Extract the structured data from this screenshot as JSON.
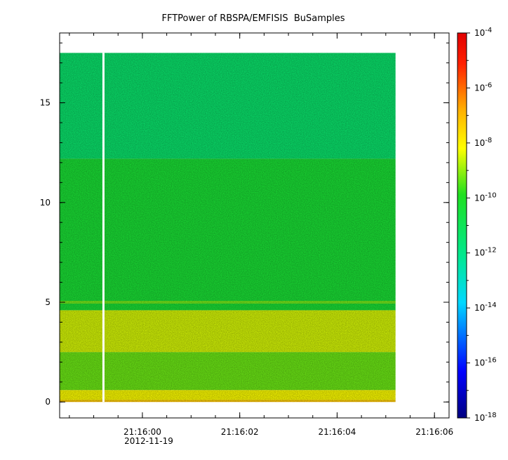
{
  "chart_data": {
    "type": "heatmap",
    "title": "FFTPower of RBSPA/EMFISIS  BuSamples",
    "xlabel": "",
    "ylabel": "",
    "x_tick_labels": [
      "21:16:00",
      "21:16:02",
      "21:16:04",
      "21:16:06"
    ],
    "x_date_label": "2012-11-19",
    "x_range": [
      "21:15:58.3",
      "21:16:06.3"
    ],
    "data_x_range": [
      "21:15:58.3",
      "21:16:05.2"
    ],
    "gap_at": "21:15:59.2",
    "y_tick_labels": [
      "0",
      "5",
      "10",
      "15"
    ],
    "ylim": [
      -0.8,
      18.5
    ],
    "data_ylim": [
      0,
      17.5
    ],
    "colorbar": {
      "scale": "log",
      "range": [
        1e-18,
        0.0001
      ],
      "tick_exponents": [
        -4,
        -6,
        -8,
        -10,
        -12,
        -14,
        -16,
        -18
      ],
      "tick_base": "10"
    },
    "bands": [
      {
        "y": [
          0,
          0.1
        ],
        "log_power": -7.2
      },
      {
        "y": [
          0.1,
          0.6
        ],
        "log_power": -8.2
      },
      {
        "y": [
          0.6,
          2.5
        ],
        "log_power": -9.3
      },
      {
        "y": [
          2.5,
          4.6
        ],
        "log_power": -8.5
      },
      {
        "y": [
          4.6,
          12.2
        ],
        "log_power": -10.3
      },
      {
        "y": [
          12.2,
          17.5
        ],
        "log_power": -11.4
      }
    ],
    "emission_line": {
      "y": 5.0,
      "log_power": -8.7
    }
  }
}
